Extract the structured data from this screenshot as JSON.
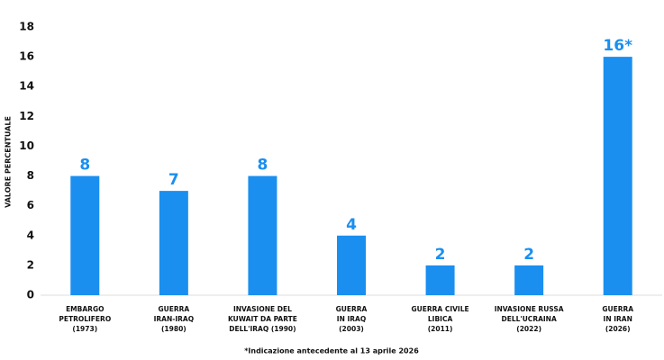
{
  "chart_data": {
    "type": "bar",
    "y_label": "VALORE PERCENTUALE",
    "footnote": "*Indicazione antecedente al 13 aprile 2026",
    "categories": [
      [
        "EMBARGO",
        "PETROLIFERO",
        "(1973)"
      ],
      [
        "GUERRA",
        "IRAN-IRAQ",
        "(1980)"
      ],
      [
        "INVASIONE DEL",
        "KUWAIT DA PARTE",
        "DELL'IRAQ (1990)"
      ],
      [
        "GUERRA",
        "IN IRAQ",
        "(2003)"
      ],
      [
        "GUERRA CIVILE",
        "LIBICA",
        "(2011)"
      ],
      [
        "INVASIONE RUSSA",
        "DELL'UCRAINA",
        "(2022)"
      ],
      [
        "GUERRA",
        "IN IRAN",
        "(2026)"
      ]
    ],
    "values": [
      8,
      7,
      8,
      4,
      2,
      2,
      16
    ],
    "value_labels": [
      "8",
      "7",
      "8",
      "4",
      "2",
      "2",
      "16*"
    ],
    "color": "#1a8ff0",
    "ylim": [
      0,
      18
    ],
    "yticks": [
      0,
      2,
      4,
      6,
      8,
      10,
      12,
      14,
      16,
      18
    ]
  }
}
